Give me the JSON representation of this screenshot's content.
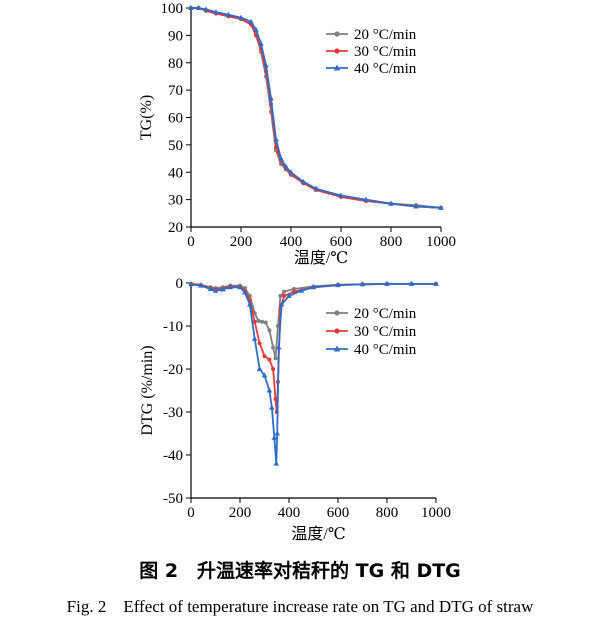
{
  "caption": {
    "cn": "图 2　升温速率对秸秆的 TG 和 DTG",
    "en": "Fig. 2　Effect of temperature increase rate on TG and DTG of straw"
  },
  "legend_markers": "circle (20 °C/min, 30 °C/min), triangle (40 °C/min)",
  "chart_data": [
    {
      "type": "line",
      "panel": "TG",
      "title": "",
      "xlabel": "温度/℃",
      "ylabel": "TG(%)",
      "xlim": [
        0,
        1000
      ],
      "ylim": [
        20,
        100
      ],
      "x_ticks": [
        "0",
        "200",
        "400",
        "600",
        "800",
        "1000"
      ],
      "y_ticks": [
        "20",
        "30",
        "40",
        "50",
        "60",
        "70",
        "80",
        "90",
        "100"
      ],
      "legend_position": "upper-right",
      "series": [
        {
          "name": "20 °C/min",
          "color": "#7f7f7f",
          "x": [
            0,
            30,
            60,
            100,
            150,
            200,
            240,
            260,
            280,
            300,
            320,
            340,
            360,
            380,
            400,
            450,
            500,
            600,
            700,
            800,
            900,
            1000
          ],
          "y": [
            100,
            100,
            99,
            98,
            97,
            96,
            94,
            90,
            84,
            75,
            62,
            48,
            43,
            41,
            39,
            36,
            34,
            31,
            29.5,
            28.5,
            28,
            27
          ]
        },
        {
          "name": "30 °C/min",
          "color": "#e23a3a",
          "x": [
            0,
            30,
            60,
            100,
            150,
            200,
            240,
            260,
            280,
            300,
            320,
            340,
            360,
            380,
            400,
            450,
            500,
            600,
            700,
            800,
            900,
            1000
          ],
          "y": [
            100,
            100,
            99,
            98,
            97,
            96,
            94,
            90,
            85,
            77,
            65,
            49,
            44,
            41.5,
            39.5,
            36,
            33.5,
            31,
            29.5,
            28.5,
            27.5,
            27
          ]
        },
        {
          "name": "40 °C/min",
          "color": "#2f6cc7",
          "x": [
            0,
            30,
            60,
            100,
            150,
            200,
            240,
            260,
            280,
            300,
            320,
            340,
            360,
            380,
            400,
            450,
            500,
            600,
            700,
            800,
            900,
            1000
          ],
          "y": [
            100,
            100,
            99.5,
            98.5,
            97.5,
            96.5,
            95,
            92,
            87,
            79,
            67,
            52,
            45,
            42,
            40,
            36.5,
            34,
            31.5,
            30,
            28.5,
            27.5,
            27
          ]
        }
      ]
    },
    {
      "type": "line",
      "panel": "DTG",
      "title": "",
      "xlabel": "温度/℃",
      "ylabel": "DTG (%/min)",
      "xlim": [
        0,
        1000
      ],
      "ylim": [
        -50,
        0
      ],
      "x_ticks": [
        "0",
        "200",
        "400",
        "600",
        "800",
        "1000"
      ],
      "y_ticks": [
        "0",
        "-10",
        "-20",
        "-30",
        "-40",
        "-50"
      ],
      "legend_position": "center-right",
      "series": [
        {
          "name": "20 °C/min",
          "color": "#7f7f7f",
          "x": [
            0,
            40,
            80,
            100,
            130,
            160,
            200,
            220,
            240,
            260,
            275,
            290,
            305,
            320,
            335,
            345,
            355,
            365,
            380,
            420,
            500,
            600,
            700,
            800,
            900,
            1000
          ],
          "y": [
            -0.2,
            -0.4,
            -1.0,
            -1.2,
            -1.0,
            -0.6,
            -0.6,
            -1.2,
            -3,
            -7,
            -8.8,
            -9.0,
            -9.2,
            -11,
            -15,
            -17.5,
            -10,
            -3,
            -2,
            -1.4,
            -0.8,
            -0.4,
            -0.3,
            -0.2,
            -0.2,
            -0.2
          ]
        },
        {
          "name": "30 °C/min",
          "color": "#e23a3a",
          "x": [
            0,
            40,
            80,
            100,
            130,
            160,
            200,
            220,
            240,
            260,
            280,
            300,
            320,
            335,
            345,
            350,
            355,
            365,
            380,
            420,
            500,
            600,
            700,
            800,
            900,
            1000
          ],
          "y": [
            -0.2,
            -0.5,
            -1.2,
            -1.5,
            -1.3,
            -0.8,
            -0.8,
            -1.8,
            -4,
            -9,
            -14,
            -17,
            -17.8,
            -20,
            -27,
            -30,
            -23,
            -6,
            -3,
            -2,
            -1,
            -0.5,
            -0.3,
            -0.2,
            -0.2,
            -0.2
          ]
        },
        {
          "name": "40 °C/min",
          "color": "#2f6cc7",
          "x": [
            0,
            40,
            80,
            100,
            130,
            160,
            200,
            220,
            240,
            260,
            280,
            300,
            320,
            330,
            340,
            348,
            352,
            358,
            370,
            400,
            450,
            500,
            600,
            700,
            800,
            900,
            1000
          ],
          "y": [
            -0.3,
            -0.6,
            -1.4,
            -1.8,
            -1.5,
            -1.0,
            -1.0,
            -2.2,
            -5,
            -13,
            -20,
            -21.5,
            -25,
            -29,
            -36,
            -42,
            -35,
            -15,
            -5,
            -3,
            -1.8,
            -1,
            -0.5,
            -0.3,
            -0.2,
            -0.2,
            -0.2
          ]
        }
      ]
    }
  ]
}
